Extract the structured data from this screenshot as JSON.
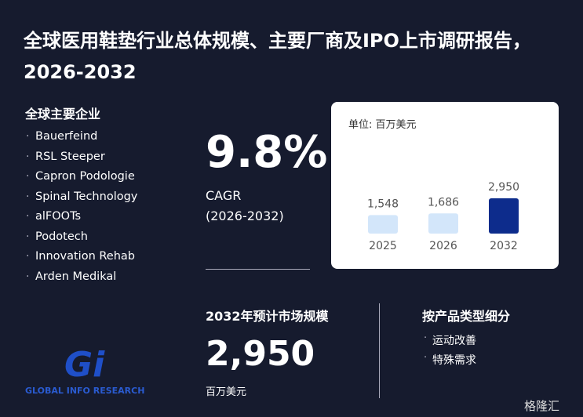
{
  "header": {
    "title": "全球医用鞋垫行业总体规模、主要厂商及IPO上市调研报告，2026-2032"
  },
  "companies": {
    "heading": "全球主要企业",
    "items": [
      "Bauerfeind",
      "RSL Steeper",
      "Capron Podologie",
      "Spinal Technology",
      "alFOOTs",
      "Podotech",
      "Innovation Rehab",
      "Arden Medikal"
    ]
  },
  "cagr": {
    "value": "9.8%",
    "label": "CAGR",
    "period": "(2026-2032)"
  },
  "market_size": {
    "heading": "2032年预计市场规模",
    "value": "2,950",
    "unit": "百万美元"
  },
  "segments": {
    "heading": "按产品类型细分",
    "items": [
      "运动改善",
      "特殊需求"
    ]
  },
  "logo": {
    "mark": "Gi",
    "text": "GLOBAL INFO RESEARCH"
  },
  "footer": {
    "brand": "格隆汇"
  },
  "chart_data": {
    "type": "bar",
    "subtitle": "单位: 百万美元",
    "categories": [
      "2025",
      "2026",
      "2032"
    ],
    "values": [
      1548,
      1686,
      2950
    ],
    "value_labels": [
      "1,548",
      "1,686",
      "2,950"
    ],
    "colors": [
      "#d3e6fa",
      "#d3e6fa",
      "#0d2c8c"
    ]
  }
}
